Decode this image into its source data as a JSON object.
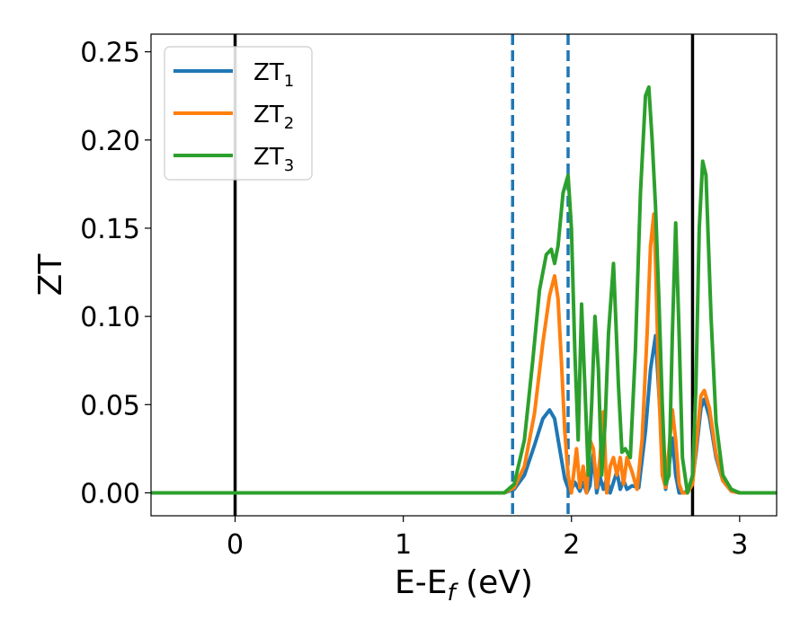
{
  "chart_data": {
    "type": "line",
    "xlabel": "E-E_f (eV)",
    "ylabel": "ZT",
    "xlim": [
      -0.5,
      3.22
    ],
    "ylim": [
      -0.013,
      0.26
    ],
    "xticks": [
      0,
      1,
      2,
      3
    ],
    "xtick_labels": [
      "0",
      "1",
      "2",
      "3"
    ],
    "yticks": [
      0.0,
      0.05,
      0.1,
      0.15,
      0.2,
      0.25
    ],
    "ytick_labels": [
      "0.00",
      "0.05",
      "0.10",
      "0.15",
      "0.20",
      "0.25"
    ],
    "grid": false,
    "legend_position": "top-left",
    "vlines": [
      {
        "x": 0.0,
        "style": "solid",
        "color": "#000000"
      },
      {
        "x": 2.72,
        "style": "solid",
        "color": "#000000"
      },
      {
        "x": 1.65,
        "style": "dashed",
        "color": "#1f77b4"
      },
      {
        "x": 1.98,
        "style": "dashed",
        "color": "#1f77b4"
      }
    ],
    "series": [
      {
        "name": "ZT",
        "subscript": "1",
        "color": "#1f77b4",
        "x": [
          -0.5,
          1.6,
          1.66,
          1.72,
          1.78,
          1.83,
          1.87,
          1.9,
          1.93,
          1.96,
          1.99,
          2.02,
          2.05,
          2.07,
          2.09,
          2.11,
          2.13,
          2.15,
          2.17,
          2.19,
          2.21,
          2.23,
          2.25,
          2.27,
          2.29,
          2.31,
          2.33,
          2.36,
          2.4,
          2.44,
          2.47,
          2.5,
          2.53,
          2.56,
          2.58,
          2.6,
          2.62,
          2.64,
          2.67,
          2.7,
          2.72,
          2.74,
          2.77,
          2.79,
          2.82,
          2.86,
          2.9,
          2.95,
          3.0,
          3.05,
          3.22
        ],
        "y": [
          0.0,
          0.0,
          0.002,
          0.01,
          0.027,
          0.042,
          0.047,
          0.042,
          0.025,
          0.008,
          0.0,
          0.006,
          0.001,
          0.006,
          0.0,
          0.004,
          0.022,
          0.0,
          0.009,
          0.002,
          0.008,
          0.0,
          0.006,
          0.012,
          0.002,
          0.007,
          0.002,
          0.004,
          0.003,
          0.035,
          0.07,
          0.089,
          0.04,
          0.002,
          0.015,
          0.031,
          0.01,
          0.0,
          0.0,
          0.002,
          0.008,
          0.022,
          0.048,
          0.053,
          0.043,
          0.02,
          0.007,
          0.001,
          0.0,
          0.0,
          0.0
        ]
      },
      {
        "name": "ZT",
        "subscript": "2",
        "color": "#ff7f0e",
        "x": [
          -0.5,
          1.6,
          1.66,
          1.72,
          1.78,
          1.83,
          1.87,
          1.9,
          1.92,
          1.94,
          1.96,
          1.98,
          2.0,
          2.03,
          2.05,
          2.07,
          2.09,
          2.11,
          2.13,
          2.15,
          2.17,
          2.19,
          2.21,
          2.23,
          2.25,
          2.27,
          2.29,
          2.31,
          2.33,
          2.36,
          2.39,
          2.42,
          2.45,
          2.47,
          2.49,
          2.5,
          2.52,
          2.54,
          2.56,
          2.58,
          2.6,
          2.62,
          2.64,
          2.66,
          2.69,
          2.72,
          2.74,
          2.77,
          2.79,
          2.82,
          2.86,
          2.9,
          2.95,
          3.0,
          3.05,
          3.22
        ],
        "y": [
          0.0,
          0.0,
          0.003,
          0.015,
          0.045,
          0.085,
          0.112,
          0.123,
          0.11,
          0.075,
          0.035,
          0.01,
          0.0,
          0.025,
          0.003,
          0.015,
          0.0,
          0.03,
          0.025,
          0.003,
          0.02,
          0.046,
          0.0,
          0.015,
          0.02,
          0.01,
          0.02,
          0.005,
          0.02,
          0.012,
          0.002,
          0.03,
          0.09,
          0.14,
          0.158,
          0.13,
          0.06,
          0.01,
          0.003,
          0.025,
          0.047,
          0.03,
          0.005,
          0.0,
          0.0,
          0.005,
          0.025,
          0.055,
          0.058,
          0.048,
          0.022,
          0.007,
          0.001,
          0.0,
          0.0,
          0.0
        ]
      },
      {
        "name": "ZT",
        "subscript": "3",
        "color": "#2ca02c",
        "x": [
          -0.5,
          1.6,
          1.66,
          1.72,
          1.77,
          1.81,
          1.85,
          1.88,
          1.9,
          1.92,
          1.95,
          1.98,
          2.0,
          2.02,
          2.04,
          2.06,
          2.08,
          2.1,
          2.12,
          2.14,
          2.16,
          2.18,
          2.2,
          2.22,
          2.25,
          2.28,
          2.3,
          2.32,
          2.35,
          2.38,
          2.41,
          2.44,
          2.46,
          2.48,
          2.5,
          2.52,
          2.54,
          2.56,
          2.58,
          2.6,
          2.62,
          2.64,
          2.66,
          2.69,
          2.72,
          2.74,
          2.76,
          2.78,
          2.8,
          2.83,
          2.86,
          2.9,
          2.95,
          3.0,
          3.05,
          3.22
        ],
        "y": [
          0.0,
          0.0,
          0.005,
          0.03,
          0.075,
          0.115,
          0.135,
          0.138,
          0.13,
          0.14,
          0.17,
          0.18,
          0.15,
          0.08,
          0.03,
          0.107,
          0.06,
          0.01,
          0.05,
          0.1,
          0.07,
          0.01,
          0.04,
          0.09,
          0.13,
          0.06,
          0.023,
          0.025,
          0.02,
          0.08,
          0.17,
          0.225,
          0.23,
          0.2,
          0.162,
          0.11,
          0.05,
          0.005,
          0.01,
          0.09,
          0.153,
          0.09,
          0.02,
          0.0,
          0.01,
          0.06,
          0.15,
          0.188,
          0.18,
          0.1,
          0.04,
          0.01,
          0.002,
          0.0,
          0.0,
          0.0
        ]
      }
    ]
  }
}
